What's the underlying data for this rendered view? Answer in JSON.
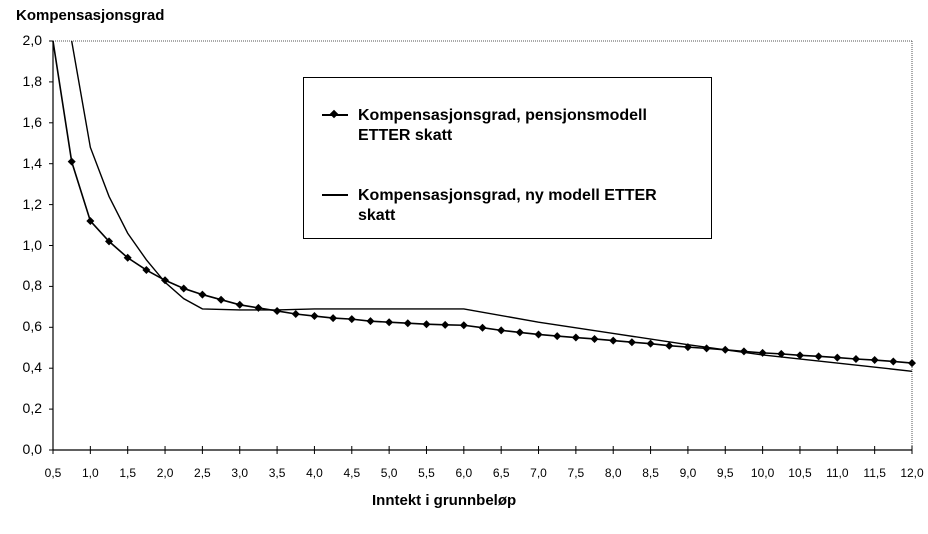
{
  "chart_data": {
    "type": "line",
    "title": "",
    "xlabel": "Inntekt i grunnbeløp",
    "ylabel": "Kompensasjonsgrad",
    "xlim": [
      0.5,
      12.0
    ],
    "ylim": [
      0.0,
      2.0
    ],
    "grid": false,
    "legend_position": "upper center (inside plot)",
    "x_ticks": [
      "0,5",
      "1,0",
      "1,5",
      "2,0",
      "2,5",
      "3,0",
      "3,5",
      "4,0",
      "4,5",
      "5,0",
      "5,5",
      "6,0",
      "6,5",
      "7,0",
      "7,5",
      "8,0",
      "8,5",
      "9,0",
      "9,5",
      "10,0",
      "10,5",
      "11,0",
      "11,5",
      "12,0"
    ],
    "y_ticks": [
      "0,0",
      "0,2",
      "0,4",
      "0,6",
      "0,8",
      "1,0",
      "1,2",
      "1,4",
      "1,6",
      "1,8",
      "2,0"
    ],
    "series": [
      {
        "name": "Kompensasjonsgrad, pensjonsmodell ETTER skatt",
        "style": "line-with-diamond-markers",
        "x": [
          0.5,
          0.75,
          1.0,
          1.25,
          1.5,
          1.75,
          2.0,
          2.25,
          2.5,
          2.75,
          3.0,
          3.25,
          3.5,
          3.75,
          4.0,
          4.25,
          4.5,
          4.75,
          5.0,
          5.25,
          5.5,
          5.75,
          6.0,
          6.25,
          6.5,
          6.75,
          7.0,
          7.25,
          7.5,
          7.75,
          8.0,
          8.25,
          8.5,
          8.75,
          9.0,
          9.25,
          9.5,
          9.75,
          10.0,
          10.25,
          10.5,
          10.75,
          11.0,
          11.25,
          11.5,
          11.75,
          12.0
        ],
        "y": [
          2.0,
          1.41,
          1.12,
          1.02,
          0.94,
          0.88,
          0.83,
          0.79,
          0.76,
          0.735,
          0.71,
          0.695,
          0.68,
          0.665,
          0.655,
          0.645,
          0.64,
          0.63,
          0.625,
          0.62,
          0.615,
          0.612,
          0.61,
          0.598,
          0.585,
          0.575,
          0.565,
          0.557,
          0.55,
          0.543,
          0.535,
          0.527,
          0.52,
          0.51,
          0.503,
          0.497,
          0.49,
          0.482,
          0.475,
          0.47,
          0.463,
          0.458,
          0.452,
          0.445,
          0.44,
          0.433,
          0.425
        ]
      },
      {
        "name": "Kompensasjonsgrad, ny modell  ETTER skatt",
        "style": "line",
        "x": [
          0.75,
          1.0,
          1.25,
          1.5,
          1.75,
          2.0,
          2.25,
          2.5,
          3.0,
          3.5,
          4.0,
          5.0,
          6.0,
          7.0,
          8.0,
          9.0,
          10.0,
          11.0,
          12.0
        ],
        "y": [
          2.0,
          1.48,
          1.24,
          1.06,
          0.93,
          0.82,
          0.74,
          0.69,
          0.685,
          0.685,
          0.69,
          0.69,
          0.69,
          0.625,
          0.57,
          0.515,
          0.465,
          0.425,
          0.385
        ]
      }
    ]
  },
  "labels": {
    "y_axis_title": "Kompensasjonsgrad",
    "x_axis_title": "Inntekt i grunnbeløp",
    "legend": [
      {
        "text": "Kompensasjonsgrad, pensjonsmodell ETTER skatt"
      },
      {
        "text": "Kompensasjonsgrad, ny modell  ETTER skatt"
      }
    ]
  }
}
